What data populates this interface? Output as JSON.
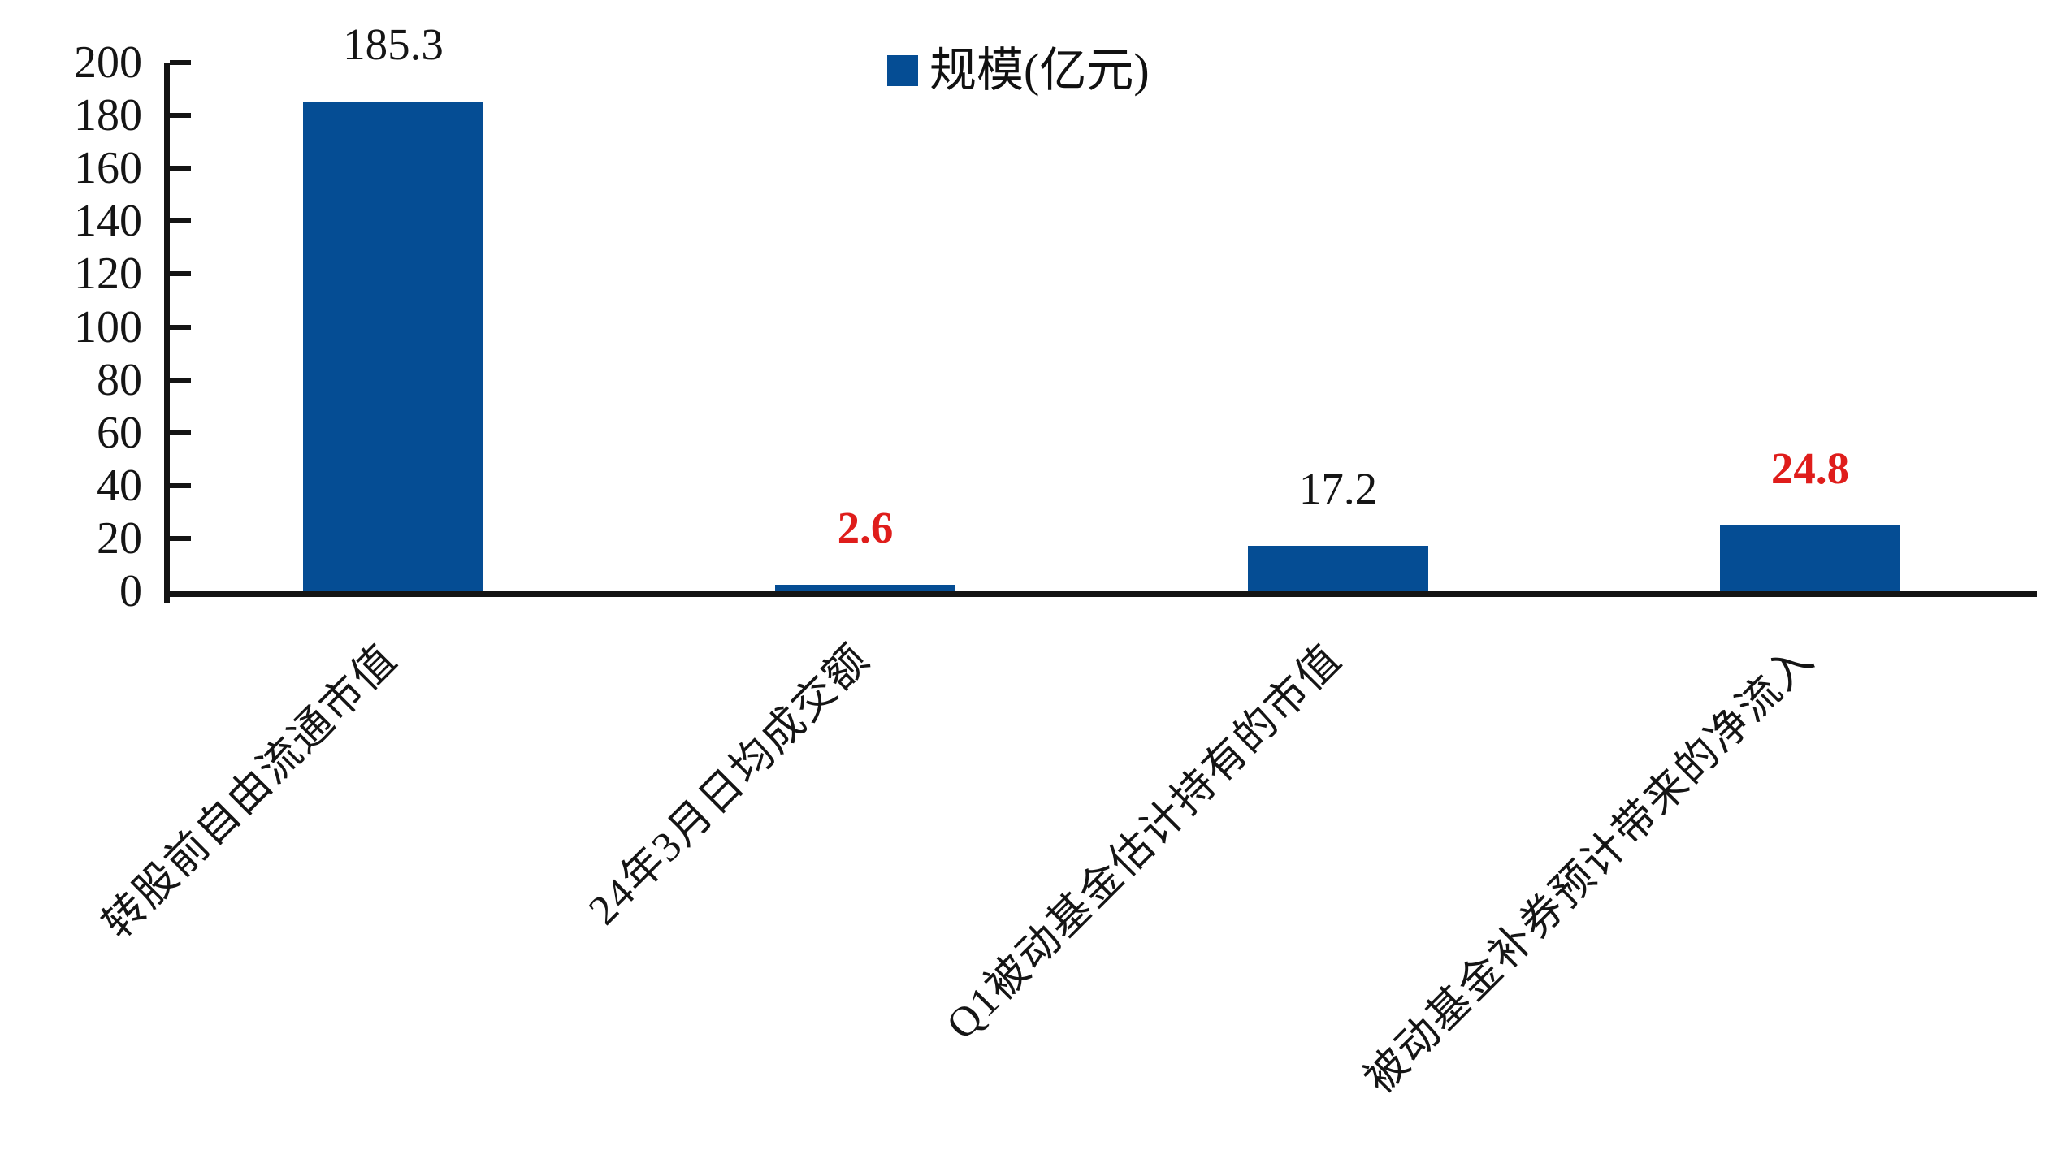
{
  "chart_data": {
    "type": "bar",
    "title": "",
    "legend": {
      "label": "规模(亿元)",
      "position": "top-center",
      "swatch_color": "#054d94"
    },
    "categories": [
      "转股前自由流通市值",
      "24年3月日均成交额",
      "Q1被动基金估计持有的市值",
      "被动基金补券预计带来的净流入"
    ],
    "series": [
      {
        "name": "规模(亿元)",
        "values": [
          185.3,
          2.6,
          17.2,
          24.8
        ]
      }
    ],
    "data_labels": [
      {
        "text": "185.3",
        "color": "#151515",
        "bold": false
      },
      {
        "text": "2.6",
        "color": "#df1d1b",
        "bold": true
      },
      {
        "text": "17.2",
        "color": "#151515",
        "bold": false
      },
      {
        "text": "24.8",
        "color": "#df1d1b",
        "bold": true
      }
    ],
    "ylim": [
      0,
      200
    ],
    "yticks": [
      0,
      20,
      40,
      60,
      80,
      100,
      120,
      140,
      160,
      180,
      200
    ],
    "grid": false,
    "legend_entries": [
      "规模(亿元)"
    ],
    "bar_color": "#054d94",
    "emphasis_color": "#df1d1b",
    "axis_color": "#141414",
    "xlabel": "",
    "ylabel": ""
  }
}
